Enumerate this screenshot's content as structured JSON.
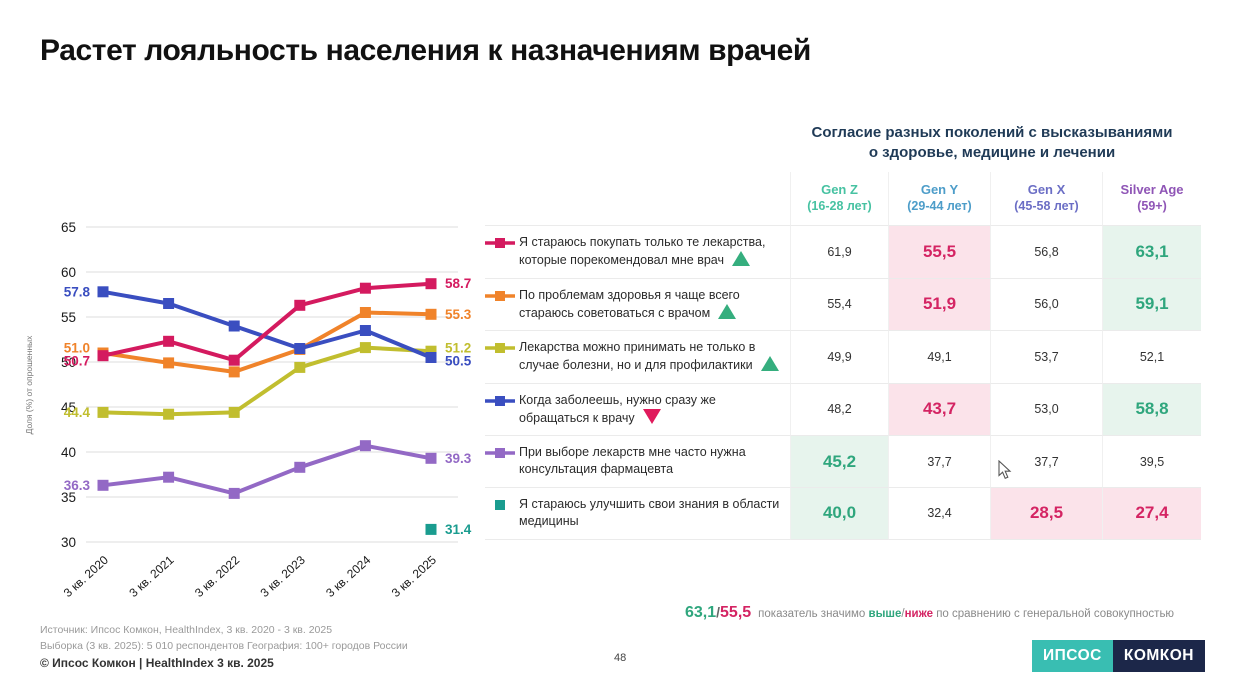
{
  "slide": {
    "title": "Растет лояльность населения к назначениям врачей",
    "page_number": "48"
  },
  "chart_data": {
    "type": "line",
    "x": [
      "3 кв. 2020",
      "3 кв. 2021",
      "3 кв. 2022",
      "3 кв. 2023",
      "3 кв. 2024",
      "3 кв. 2025"
    ],
    "ylabel": "Доля (%) от опрошенных",
    "ylim": [
      30,
      65
    ],
    "yticks": [
      65,
      60,
      55,
      50,
      45,
      40,
      35,
      30
    ],
    "grid": true,
    "legend_position": "right-table",
    "series": [
      {
        "name": "Я стараюсь покупать только те лекарства, которые порекомендовал мне врач",
        "color": "#D41A5F",
        "values": [
          50.7,
          52.3,
          50.2,
          56.3,
          58.2,
          58.7
        ]
      },
      {
        "name": "По проблемам здоровья я чаще всего стараюсь советоваться с врачом",
        "color": "#F0832A",
        "values": [
          51.0,
          49.9,
          48.9,
          51.4,
          55.5,
          55.3
        ]
      },
      {
        "name": "Лекарства можно принимать не только в случае болезни, но и для профилактики",
        "color": "#C1BE2F",
        "values": [
          44.4,
          44.2,
          44.4,
          49.4,
          51.6,
          51.2
        ]
      },
      {
        "name": "Когда заболеешь, нужно сразу же обращаться к врачу",
        "color": "#3A4EC0",
        "values": [
          57.8,
          56.5,
          54.0,
          51.5,
          53.5,
          50.5
        ]
      },
      {
        "name": "При выборе лекарств мне часто нужна консультация фармацевта",
        "color": "#9369C5",
        "values": [
          36.3,
          37.2,
          35.4,
          38.3,
          40.7,
          39.3
        ]
      },
      {
        "name": "Я стараюсь улучшить свои знания в области медицины",
        "color": "#1A9C8F",
        "values": [
          null,
          null,
          null,
          null,
          null,
          31.4
        ]
      }
    ]
  },
  "table": {
    "title_line1": "Согласие разных поколений с высказываниями",
    "title_line2": "о здоровье, медицине и лечении",
    "columns": [
      {
        "label": "Gen Z",
        "sub": "(16-28 лет)",
        "color": "#47C2A2"
      },
      {
        "label": "Gen Y",
        "sub": "(29-44 лет)",
        "color": "#4D9DC9"
      },
      {
        "label": "Gen X",
        "sub": "(45-58 лет)",
        "color": "#6B6EC5"
      },
      {
        "label": "Silver Age",
        "sub": "(59+)",
        "color": "#8F55B6"
      }
    ],
    "rows": [
      {
        "statement": "Я стараюсь покупать только те лекарства, которые порекомендовал мне врач",
        "trend": "up",
        "marker": "line",
        "color": "#D41A5F",
        "values": [
          "61,9",
          "55,5",
          "56,8",
          "63,1"
        ],
        "highlights": [
          "none",
          "low",
          "none",
          "high"
        ]
      },
      {
        "statement": "По проблемам здоровья я чаще всего стараюсь советоваться с врачом",
        "trend": "up",
        "marker": "line",
        "color": "#F0832A",
        "values": [
          "55,4",
          "51,9",
          "56,0",
          "59,1"
        ],
        "highlights": [
          "none",
          "low",
          "none",
          "high"
        ]
      },
      {
        "statement": "Лекарства можно принимать не только в случае болезни, но и для профилактики",
        "trend": "up",
        "marker": "line",
        "color": "#C1BE2F",
        "values": [
          "49,9",
          "49,1",
          "53,7",
          "52,1"
        ],
        "highlights": [
          "none",
          "none",
          "none",
          "none"
        ]
      },
      {
        "statement": "Когда заболеешь, нужно сразу же обращаться к врачу",
        "trend": "down",
        "marker": "line",
        "color": "#3A4EC0",
        "values": [
          "48,2",
          "43,7",
          "53,0",
          "58,8"
        ],
        "highlights": [
          "none",
          "low",
          "none",
          "high"
        ]
      },
      {
        "statement": "При выборе лекарств мне часто нужна консультация фармацевта",
        "trend": "none",
        "marker": "line",
        "color": "#9369C5",
        "values": [
          "45,2",
          "37,7",
          "37,7",
          "39,5"
        ],
        "highlights": [
          "high",
          "none",
          "none",
          "none"
        ]
      },
      {
        "statement": "Я стараюсь улучшить свои знания в области медицины",
        "trend": "none",
        "marker": "square",
        "color": "#1A9C8F",
        "values": [
          "40,0",
          "32,4",
          "28,5",
          "27,4"
        ],
        "highlights": [
          "high",
          "none",
          "low",
          "low"
        ]
      }
    ]
  },
  "legend_note": {
    "high_example": "63,1",
    "slash1": "/",
    "low_example": "55,5",
    "text_pre": "показатель значимо ",
    "word_high": "выше",
    "slash2": "/",
    "word_low": "ниже",
    "text_post": " по сравнению с генеральной совокупностью"
  },
  "footer": {
    "source_line1": "Источник: Ипсос Комкон, HealthIndex, 3 кв. 2020 - 3 кв. 2025",
    "source_line2": "Выборка (3 кв. 2025): 5 010 респондентов География: 100+ городов России",
    "copyright": "© Ипсос Комкон | HealthIndex 3 кв. 2025"
  },
  "logo": {
    "part1": "ИПСОС",
    "part2": "КОМКОН"
  },
  "colors": {
    "accent_green": "#2FA67D",
    "accent_pink": "#D42463",
    "green_cell_bg": "#E7F4ED",
    "pink_cell_bg": "#FBE3EA",
    "table_title": "#1F3A56",
    "grid_line": "#dddddd",
    "logo_teal": "#39BEB2",
    "logo_navy": "#1C2749"
  }
}
